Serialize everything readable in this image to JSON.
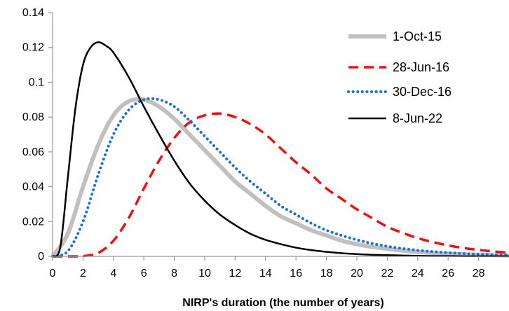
{
  "chart_data": {
    "type": "line",
    "title": "",
    "xlabel": "NIRP's duration (the number of years)",
    "ylabel": "",
    "xlim": [
      0,
      30
    ],
    "ylim": [
      0,
      0.14
    ],
    "x_ticks": [
      "0",
      "2",
      "4",
      "6",
      "8",
      "10",
      "12",
      "14",
      "16",
      "18",
      "20",
      "22",
      "24",
      "26",
      "28"
    ],
    "y_ticks": [
      "0",
      "0.02",
      "0.04",
      "0.06",
      "0.08",
      "0.1",
      "0.12",
      "0.14"
    ],
    "grid": false,
    "legend_position": "top-right",
    "series": [
      {
        "name": "1-Oct-15",
        "color": "#c0c0c0",
        "style": "solid-thick",
        "x": [
          0,
          1,
          2,
          3,
          4,
          5,
          6,
          7,
          8,
          9,
          10,
          11,
          12,
          13,
          14,
          15,
          16,
          17,
          18,
          19,
          20,
          21,
          22,
          23,
          24,
          25,
          26,
          27,
          28,
          29,
          30
        ],
        "values": [
          0,
          0.013,
          0.04,
          0.064,
          0.081,
          0.089,
          0.09,
          0.086,
          0.079,
          0.07,
          0.061,
          0.052,
          0.043,
          0.036,
          0.029,
          0.023,
          0.019,
          0.015,
          0.012,
          0.009,
          0.007,
          0.0055,
          0.0043,
          0.0033,
          0.0025,
          0.0019,
          0.0015,
          0.0011,
          0.0009,
          0.0007,
          0.0005
        ]
      },
      {
        "name": "28-Jun-16",
        "color": "#ee1111",
        "style": "dashed",
        "x": [
          0,
          1,
          2,
          3,
          4,
          5,
          6,
          7,
          8,
          9,
          10,
          11,
          12,
          13,
          14,
          15,
          16,
          17,
          18,
          19,
          20,
          21,
          22,
          23,
          24,
          25,
          26,
          27,
          28,
          29,
          30
        ],
        "values": [
          0,
          0,
          0.0002,
          0.002,
          0.009,
          0.022,
          0.039,
          0.055,
          0.068,
          0.077,
          0.081,
          0.082,
          0.08,
          0.076,
          0.07,
          0.062,
          0.054,
          0.047,
          0.039,
          0.033,
          0.027,
          0.022,
          0.017,
          0.0135,
          0.0105,
          0.0082,
          0.0063,
          0.0048,
          0.0037,
          0.0028,
          0.0021
        ]
      },
      {
        "name": "30-Dec-16",
        "color": "#1f6fd0",
        "style": "dotted",
        "x": [
          0,
          1,
          2,
          3,
          4,
          5,
          6,
          7,
          8,
          9,
          10,
          11,
          12,
          13,
          14,
          15,
          16,
          17,
          18,
          19,
          20,
          21,
          22,
          23,
          24,
          25,
          26,
          27,
          28,
          29,
          30
        ],
        "values": [
          0,
          0.003,
          0.02,
          0.047,
          0.07,
          0.084,
          0.09,
          0.09,
          0.086,
          0.078,
          0.069,
          0.06,
          0.051,
          0.043,
          0.036,
          0.029,
          0.024,
          0.019,
          0.015,
          0.012,
          0.0095,
          0.0074,
          0.0058,
          0.0045,
          0.0035,
          0.0027,
          0.0021,
          0.0016,
          0.0012,
          0.0009,
          0.0007
        ]
      },
      {
        "name": "8-Jun-22",
        "color": "#000000",
        "style": "solid",
        "x": [
          0,
          0.5,
          1,
          1.5,
          2,
          2.5,
          3,
          3.5,
          4,
          5,
          6,
          7,
          8,
          9,
          10,
          11,
          12,
          13,
          14,
          15,
          16,
          17,
          18,
          19,
          20,
          21,
          22,
          23,
          24,
          25,
          26,
          27,
          28,
          29,
          30
        ],
        "values": [
          0,
          0.005,
          0.045,
          0.085,
          0.11,
          0.12,
          0.123,
          0.121,
          0.117,
          0.103,
          0.086,
          0.07,
          0.055,
          0.042,
          0.032,
          0.024,
          0.018,
          0.013,
          0.0095,
          0.007,
          0.005,
          0.0036,
          0.0026,
          0.0018,
          0.0013,
          0.0009,
          0.0007,
          0.0005,
          0.0003,
          0.0002,
          0.0002,
          0.0001,
          0.0001,
          0.0001,
          0.0001
        ]
      }
    ]
  }
}
